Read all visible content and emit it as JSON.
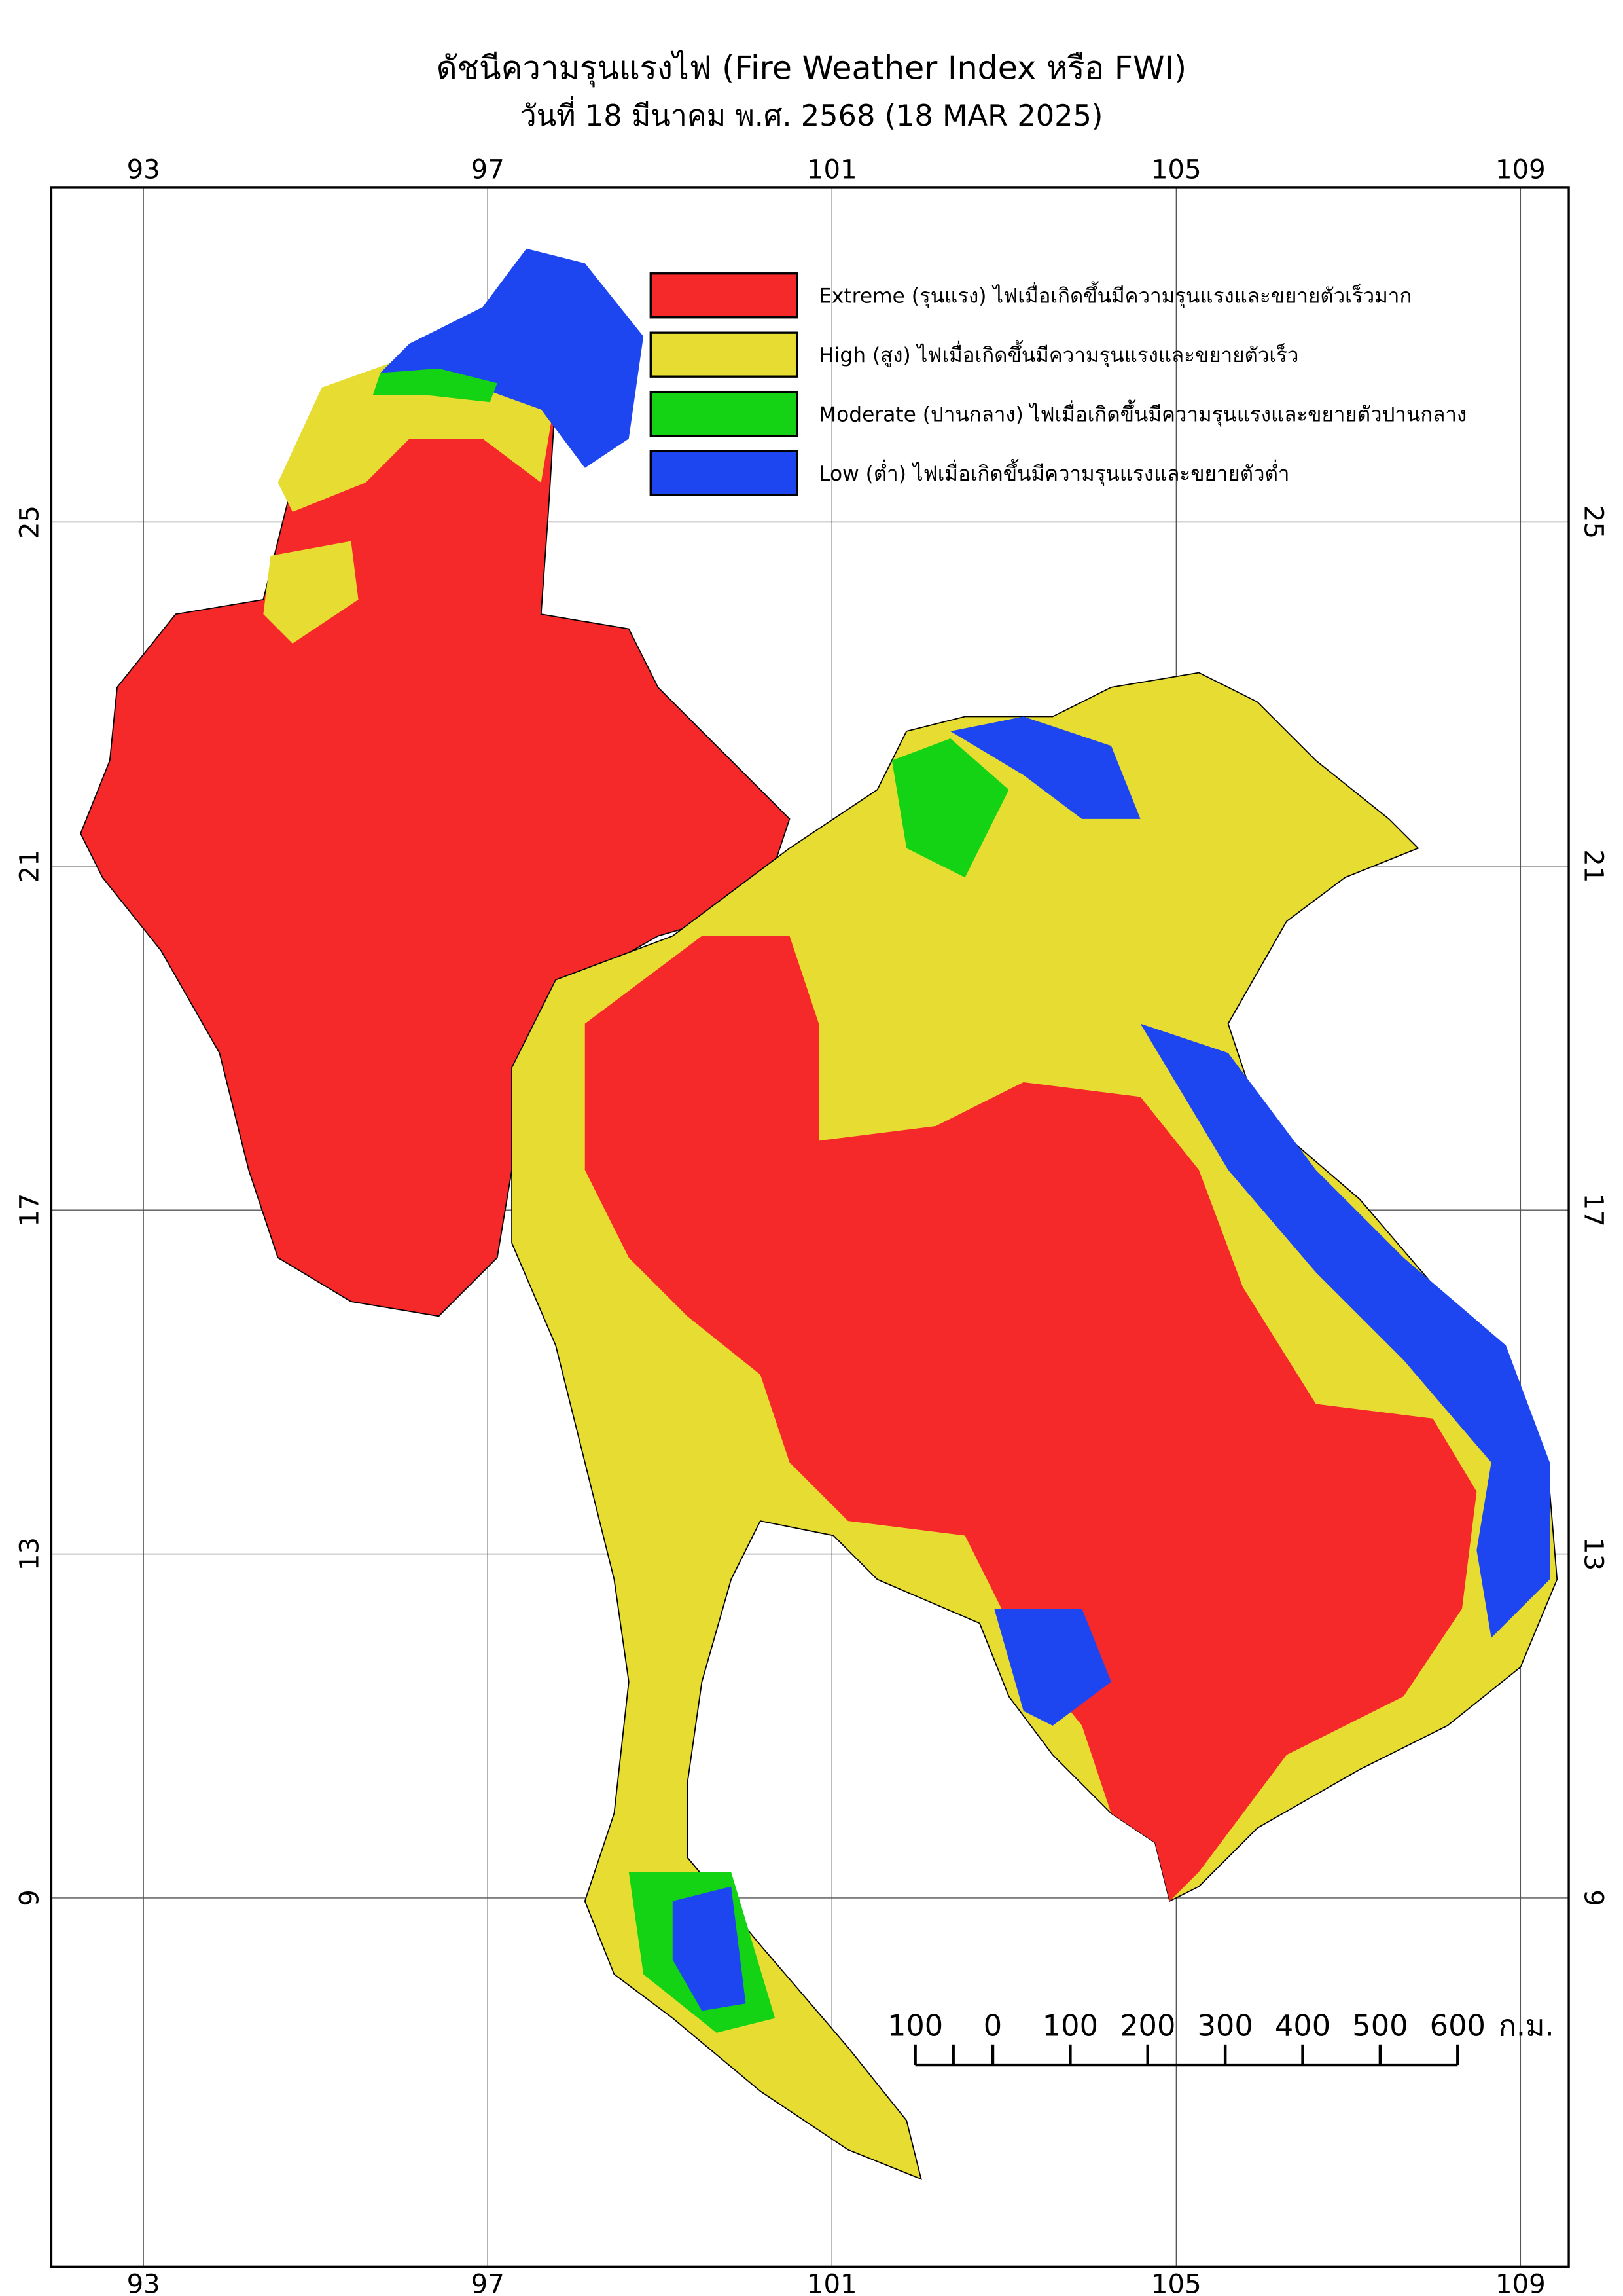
{
  "map": {
    "title": "ดัชนีความรุนแรงไฟ (Fire Weather Index หรือ FWI)",
    "subtitle": "วันที่ 18 มีนาคม พ.ศ. 2568 (18 MAR 2025)",
    "lon_ticks": [
      93,
      97,
      101,
      105,
      109
    ],
    "lat_ticks": [
      25,
      21,
      17,
      13,
      9
    ],
    "grid": true,
    "legend": [
      {
        "label": "Extreme (รุนแรง) ไฟเมื่อเกิดขึ้นมีความรุนแรงและขยายตัวเร็วมาก",
        "color": "#f5282a"
      },
      {
        "label": "High (สูง) ไฟเมื่อเกิดขึ้นมีความรุนแรงและขยายตัวเร็ว",
        "color": "#e6dc32"
      },
      {
        "label": "Moderate (ปานกลาง) ไฟเมื่อเกิดขึ้นมีความรุนแรงและขยายตัวปานกลาง",
        "color": "#14d214"
      },
      {
        "label": "Low (ต่ำ) ไฟเมื่อเกิดขึ้นมีความรุนแรงและขยายตัวต่ำ",
        "color": "#1e46f0"
      }
    ],
    "scale_bar": {
      "labels": [
        "100",
        "0",
        "100",
        "200",
        "300",
        "400",
        "500",
        "600"
      ],
      "unit": "ก.ม."
    }
  }
}
